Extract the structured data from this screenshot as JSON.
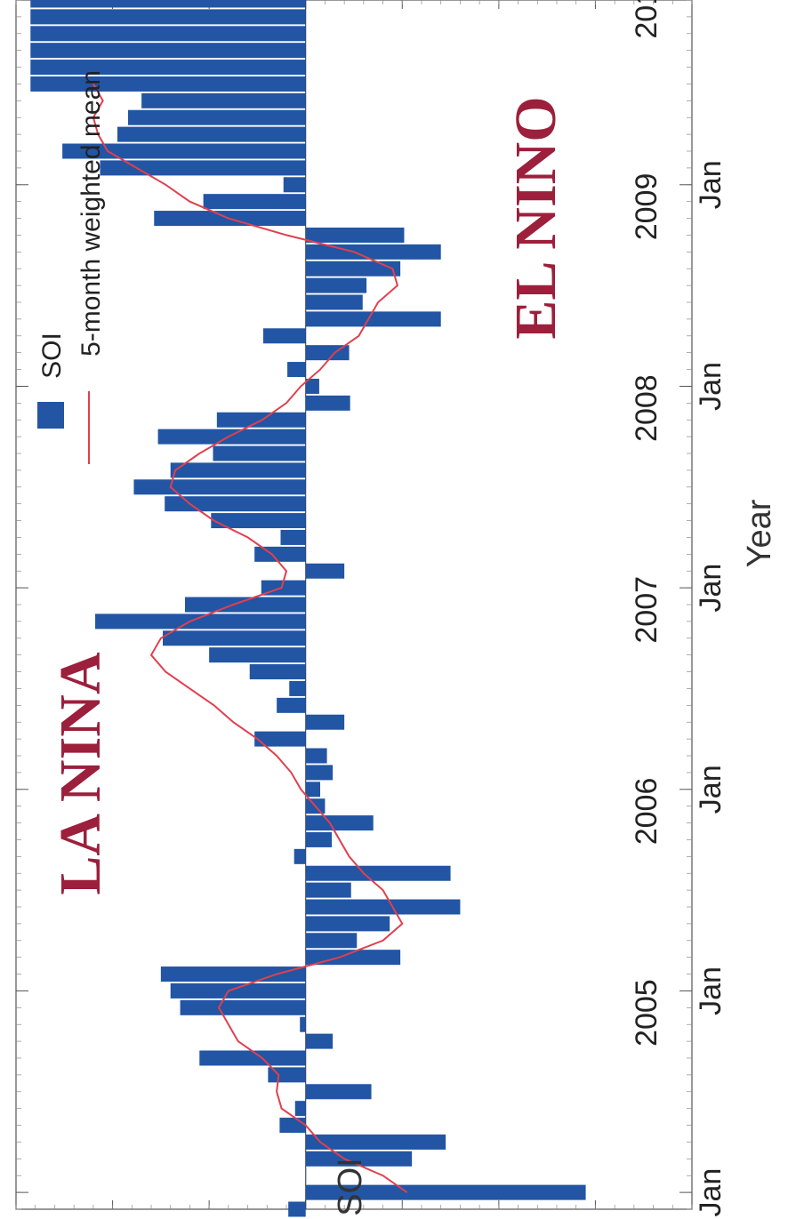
{
  "chart_data": {
    "type": "bar",
    "orientation": "rotated-90-clockwise",
    "xlabel": "Year",
    "ylabel": "SOI",
    "ylim": [
      -40,
      30
    ],
    "y_ticks": [
      30,
      20,
      10,
      0,
      -10,
      -20,
      -30,
      -40
    ],
    "x_ticks": [
      {
        "date": "2005-01",
        "label": "2005",
        "sublabel": "Jan"
      },
      {
        "date": "2006-01",
        "label": "2006",
        "sublabel": "Jan"
      },
      {
        "date": "2007-01",
        "label": "2007",
        "sublabel": "Jan"
      },
      {
        "date": "2008-01",
        "label": "2008",
        "sublabel": "Jan"
      },
      {
        "date": "2009-01",
        "label": "2009",
        "sublabel": "Jan"
      },
      {
        "date": "2010-01",
        "label": "2010",
        "sublabel": "Jan"
      }
    ],
    "xlim": [
      "2004-12",
      "2010-12"
    ],
    "bar_color": "#2255a4",
    "line_color": "#e0404f",
    "annotation_color": "#9c1f3c",
    "annotations": [
      {
        "text": "LA NINA",
        "position": "upper-left"
      },
      {
        "text": "EL NINO",
        "position": "lower-right"
      }
    ],
    "legend": {
      "placement": "top-right",
      "entries": [
        {
          "label": "SOI",
          "marker": "bar"
        },
        {
          "label": "5-month weighted mean",
          "marker": "line"
        }
      ]
    },
    "series": [
      {
        "name": "SOI",
        "months": [
          "2004-12",
          "2005-01",
          "2005-02",
          "2005-03",
          "2005-04",
          "2005-05",
          "2005-06",
          "2005-07",
          "2005-08",
          "2005-09",
          "2005-10",
          "2005-11",
          "2005-12",
          "2006-01",
          "2006-02",
          "2006-03",
          "2006-04",
          "2006-05",
          "2006-06",
          "2006-07",
          "2006-08",
          "2006-09",
          "2006-10",
          "2006-11",
          "2006-12",
          "2007-01",
          "2007-02",
          "2007-03",
          "2007-04",
          "2007-05",
          "2007-06",
          "2007-07",
          "2007-08",
          "2007-09",
          "2007-10",
          "2007-11",
          "2007-12",
          "2008-01",
          "2008-02",
          "2008-03",
          "2008-04",
          "2008-05",
          "2008-06",
          "2008-07",
          "2008-08",
          "2008-09",
          "2008-10",
          "2008-11",
          "2008-12",
          "2009-01",
          "2009-02",
          "2009-03",
          "2009-04",
          "2009-05",
          "2009-06",
          "2009-07",
          "2009-08",
          "2009-09",
          "2009-10",
          "2009-11",
          "2009-12",
          "2010-01",
          "2010-02",
          "2010-03",
          "2010-04",
          "2010-05",
          "2010-06",
          "2010-07",
          "2010-08",
          "2010-09",
          "2010-10",
          "2010-11",
          "2010-12"
        ],
        "values": [
          1.8,
          -29.0,
          0.0,
          -11.0,
          -14.5,
          2.7,
          1.1,
          -6.8,
          3.9,
          11.0,
          -2.8,
          0.6,
          13.0,
          14.0,
          15.0,
          -9.8,
          -5.3,
          -8.7,
          -16.0,
          -4.7,
          -15.0,
          1.2,
          -2.7,
          -7.0,
          -2.0,
          -1.5,
          -2.8,
          -2.2,
          5.3,
          -4.0,
          3.0,
          1.7,
          5.8,
          10.0,
          14.8,
          21.8,
          12.5,
          4.6,
          -4.0,
          5.3,
          2.6,
          9.8,
          14.6,
          17.8,
          14.0,
          9.6,
          15.3,
          9.2,
          -4.6,
          -1.4,
          1.9,
          -4.5,
          4.4,
          -14.0,
          -5.9,
          -6.3,
          -9.8,
          -14.0,
          -10.2,
          15.7,
          10.6,
          2.3,
          21.3,
          25.2,
          19.5,
          18.4,
          17.0,
          28.5,
          28.5,
          28.5,
          28.5,
          28.5,
          28.5
        ]
      },
      {
        "name": "5-month weighted mean",
        "months": [
          "2005-01",
          "2005-02",
          "2005-03",
          "2005-04",
          "2005-05",
          "2005-06",
          "2005-07",
          "2005-08",
          "2005-09",
          "2005-10",
          "2005-11",
          "2005-12",
          "2006-01",
          "2006-02",
          "2006-03",
          "2006-04",
          "2006-05",
          "2006-06",
          "2006-07",
          "2006-08",
          "2006-09",
          "2006-10",
          "2006-11",
          "2006-12",
          "2007-01",
          "2007-02",
          "2007-03",
          "2007-04",
          "2007-05",
          "2007-06",
          "2007-07",
          "2007-08",
          "2007-09",
          "2007-10",
          "2007-11",
          "2007-12",
          "2008-01",
          "2008-02",
          "2008-03",
          "2008-04",
          "2008-05",
          "2008-06",
          "2008-07",
          "2008-08",
          "2008-09",
          "2008-10",
          "2008-11",
          "2008-12",
          "2009-01",
          "2009-02",
          "2009-03",
          "2009-04",
          "2009-05",
          "2009-06",
          "2009-07",
          "2009-08",
          "2009-09",
          "2009-10",
          "2009-11",
          "2009-12",
          "2010-01",
          "2010-02",
          "2010-03",
          "2010-04",
          "2010-05",
          "2010-06",
          "2010-07"
        ],
        "values": [
          -10.5,
          -8.0,
          -4.0,
          -1.5,
          0.0,
          2.5,
          3.0,
          2.8,
          4.5,
          7.0,
          8.0,
          9.0,
          8.0,
          3.0,
          -3.5,
          -8.0,
          -10.0,
          -9.0,
          -8.0,
          -6.0,
          -4.5,
          -3.5,
          -2.5,
          -1.0,
          0.5,
          1.5,
          3.0,
          5.0,
          7.5,
          9.5,
          12.0,
          14.5,
          16.0,
          15.0,
          12.0,
          7.5,
          2.5,
          2.0,
          3.5,
          6.0,
          9.5,
          12.0,
          14.0,
          13.5,
          11.0,
          8.0,
          4.5,
          2.0,
          0.5,
          -1.5,
          -3.0,
          -5.5,
          -6.5,
          -7.5,
          -9.5,
          -9.0,
          -5.0,
          2.0,
          8.0,
          12.0,
          14.5,
          17.5,
          20.5,
          21.5,
          22.0,
          21.0,
          22.0
        ]
      }
    ]
  }
}
